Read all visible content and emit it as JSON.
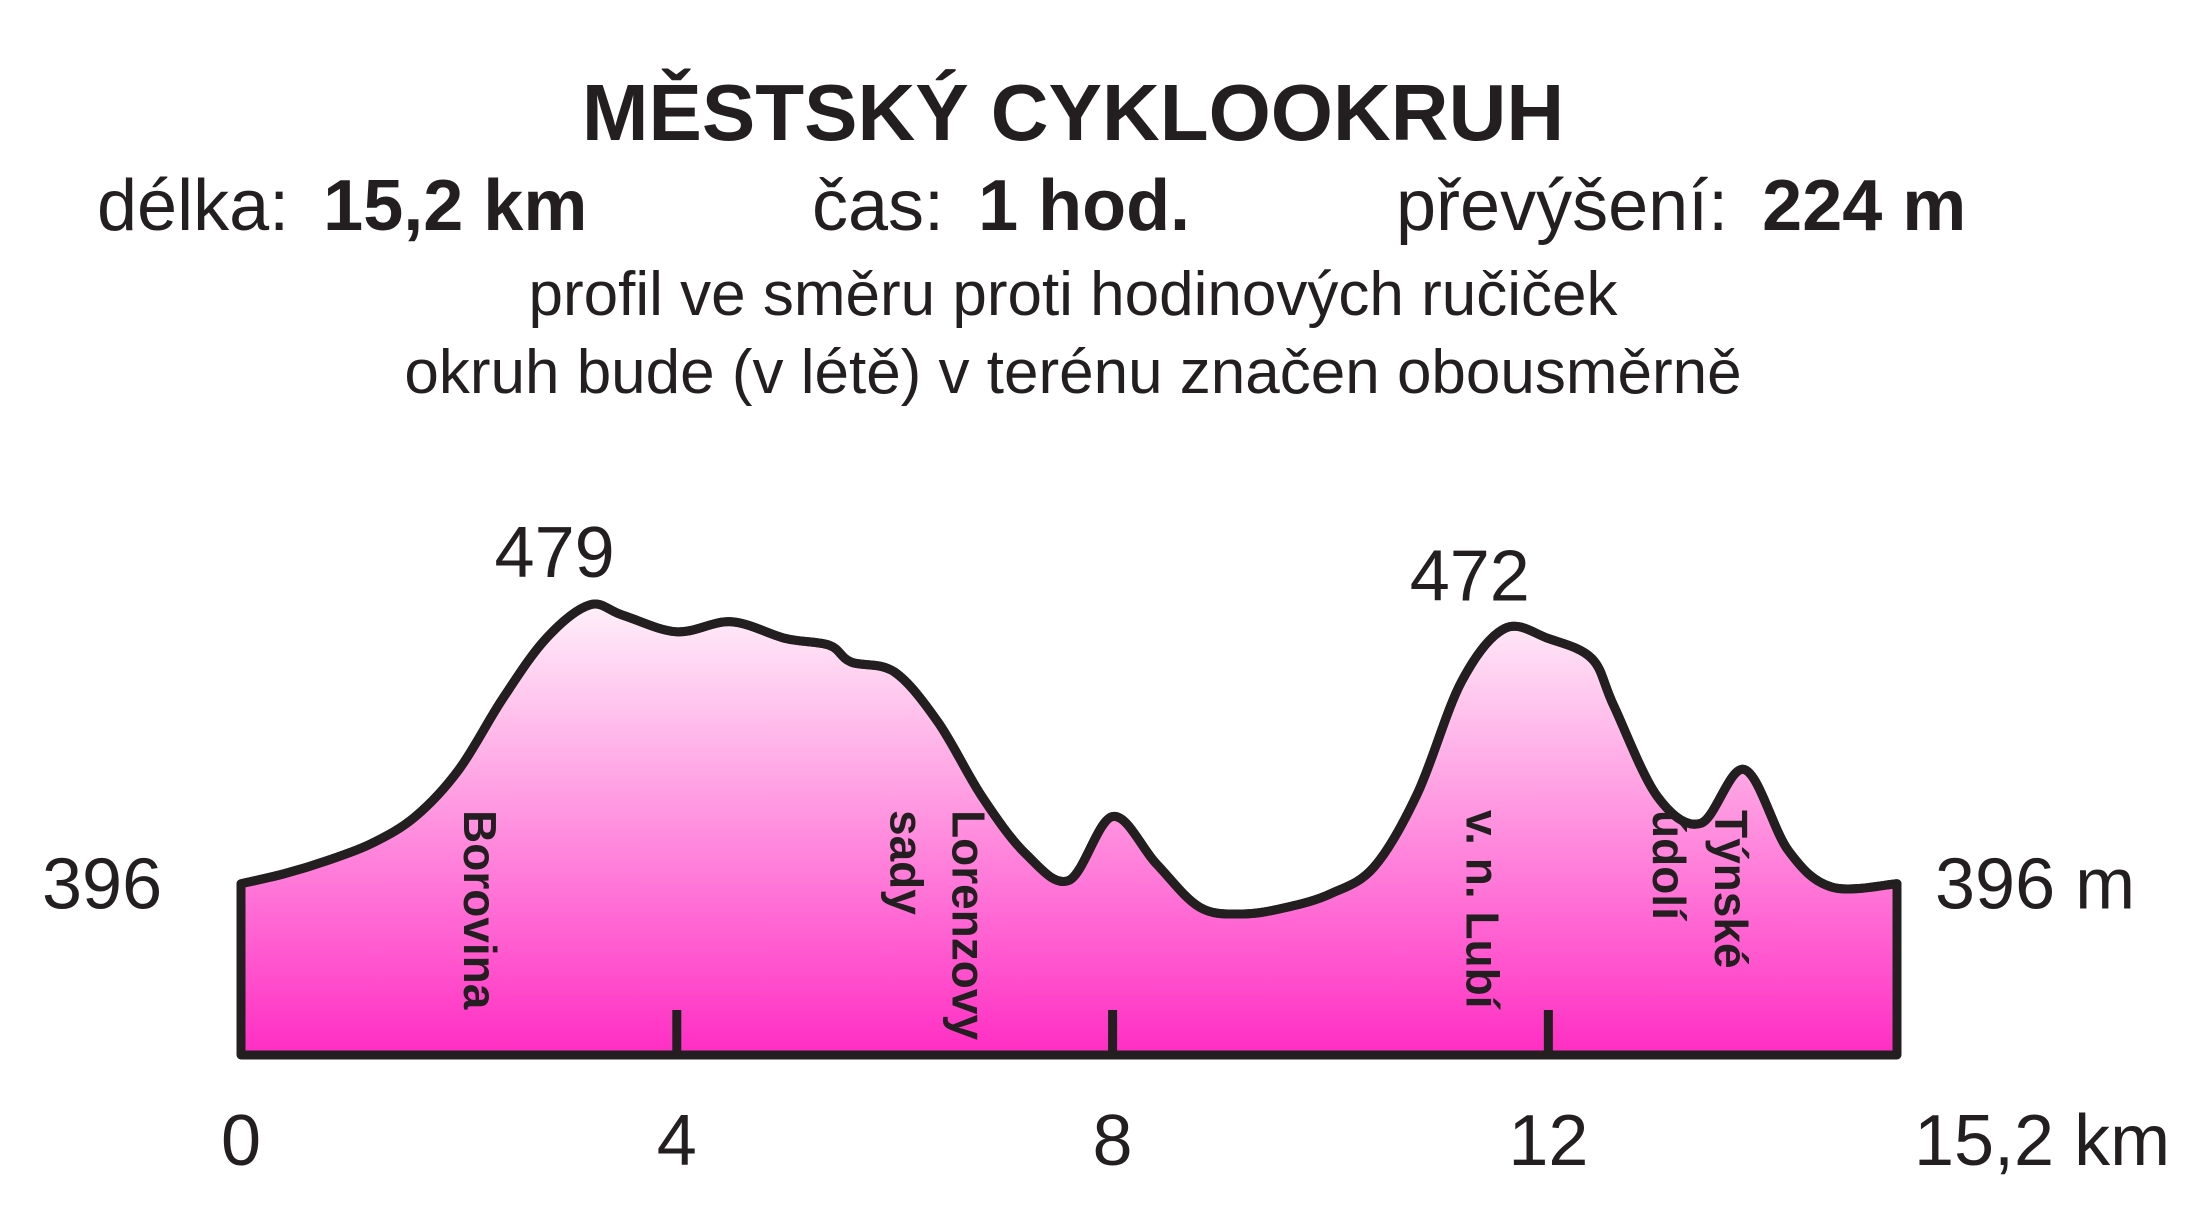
{
  "header": {
    "title": "MĚSTSKÝ CYKLOOKRUH",
    "length_label": "délka:",
    "length_value": "15,2 km",
    "time_label": "čas:",
    "time_value": "1 hod.",
    "climb_label": "převýšení:",
    "climb_value": "224 m",
    "note1": "profil ve směru proti hodinových ručiček",
    "note2": "okruh bude (v létě) v terénu značen obousměrně"
  },
  "colors": {
    "fill_top": "#fff0fa",
    "fill_bottom": "#ff2dc3",
    "outline": "#231f20"
  },
  "chart_data": {
    "type": "area",
    "title": "MĚSTSKÝ CYKLOOKRUH",
    "xlabel": "",
    "ylabel": "",
    "xlim": [
      0,
      15.2
    ],
    "ylim": [
      345,
      490
    ],
    "x_ticks": [
      {
        "value": 0,
        "label": "0"
      },
      {
        "value": 4,
        "label": "4"
      },
      {
        "value": 8,
        "label": "8"
      },
      {
        "value": 12,
        "label": "12"
      },
      {
        "value": 15.2,
        "label": "15,2 km"
      }
    ],
    "start_label": "396",
    "end_label": "396 m",
    "peak_labels": [
      {
        "x": 3.2,
        "y": 479,
        "label": "479"
      },
      {
        "x": 11.6,
        "y": 472,
        "label": "472"
      }
    ],
    "places": [
      {
        "x": 1.9,
        "lines": [
          "Borovina"
        ]
      },
      {
        "x": 6.1,
        "lines": [
          "Lorenzovy",
          "sady"
        ]
      },
      {
        "x": 11.1,
        "lines": [
          "v. n. Lubí"
        ]
      },
      {
        "x": 13.1,
        "lines": [
          "Týnské",
          "údolí"
        ]
      }
    ],
    "series": [
      {
        "x": [
          0,
          0.4,
          0.8,
          1.2,
          1.6,
          2.0,
          2.4,
          2.8,
          3.2,
          3.5,
          4.0,
          4.5,
          5.0,
          5.4,
          5.6,
          6.0,
          6.4,
          6.8,
          7.2,
          7.6,
          8.0,
          8.4,
          8.8,
          9.2,
          9.6,
          10.0,
          10.4,
          10.8,
          11.2,
          11.6,
          12.0,
          12.4,
          12.6,
          13.0,
          13.4,
          13.8,
          14.2,
          14.6,
          15.2
        ],
        "y": [
          396,
          399,
          403,
          408,
          416,
          430,
          451,
          469,
          479,
          476,
          471,
          474,
          469,
          467,
          462,
          459,
          444,
          422,
          405,
          397,
          416,
          402,
          389,
          387,
          389,
          393,
          401,
          423,
          456,
          472,
          469,
          463,
          449,
          422,
          414,
          430,
          406,
          395,
          396
        ]
      }
    ],
    "grid": false,
    "legend": "none"
  }
}
